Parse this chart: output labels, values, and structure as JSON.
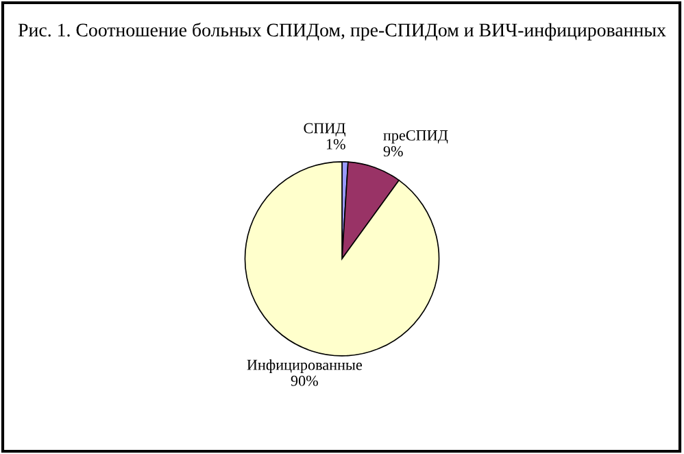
{
  "chart_data": {
    "type": "pie",
    "title": "Рис. 1. Соотношение больных СПИДом, пре-СПИДом и ВИЧ-инфицированных",
    "categories": [
      "СПИД",
      "преСПИД",
      "Инфицированные"
    ],
    "values": [
      1,
      9,
      90
    ],
    "value_labels": [
      "1%",
      "9%",
      "90%"
    ],
    "colors": [
      "#9999ff",
      "#993366",
      "#ffffcc"
    ]
  }
}
